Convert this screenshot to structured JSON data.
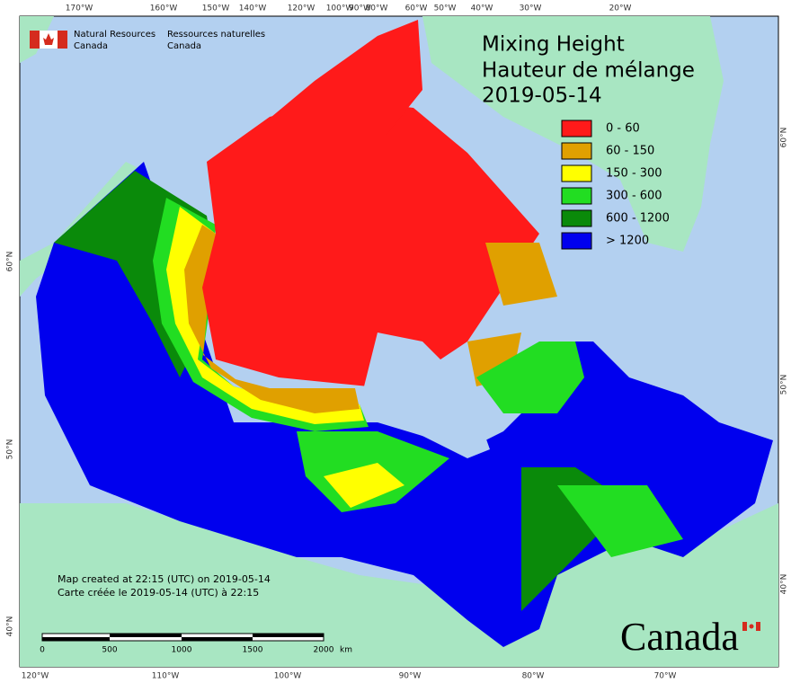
{
  "header": {
    "agency_en": [
      "Natural Resources",
      "Canada"
    ],
    "agency_fr": [
      "Ressources naturelles",
      "Canada"
    ]
  },
  "title": [
    "Mixing Height",
    "Hauteur de mélange",
    "2019-05-14"
  ],
  "legend": [
    {
      "label": "0 - 60",
      "color": "#ff1a1a"
    },
    {
      "label": "60 - 150",
      "color": "#e0a000"
    },
    {
      "label": "150 - 300",
      "color": "#ffff00"
    },
    {
      "label": "300 - 600",
      "color": "#22dd22"
    },
    {
      "label": "600 - 1200",
      "color": "#0a8a0a"
    },
    {
      "label": "> 1200",
      "color": "#0000ee"
    }
  ],
  "graticule": {
    "top": [
      "170°W",
      "160°W",
      "150°W",
      "140°W",
      "120°W",
      "100°W",
      "90°W",
      "80°W",
      "60°W",
      "50°W",
      "40°W",
      "30°W",
      "20°W"
    ],
    "bottom": [
      "120°W",
      "110°W",
      "100°W",
      "90°W",
      "80°W",
      "70°W"
    ],
    "left": [
      "60°N",
      "50°N",
      "40°N"
    ],
    "right": [
      "60°N",
      "50°N",
      "40°N"
    ]
  },
  "notes": [
    "Map created at 22:15 (UTC) on 2019-05-14",
    "Carte créée le 2019-05-14 (UTC) à 22:15"
  ],
  "scale_bar": {
    "labels": [
      "0",
      "500",
      "1000",
      "1500",
      "2000"
    ],
    "unit": "km"
  },
  "wordmark": "Canada"
}
